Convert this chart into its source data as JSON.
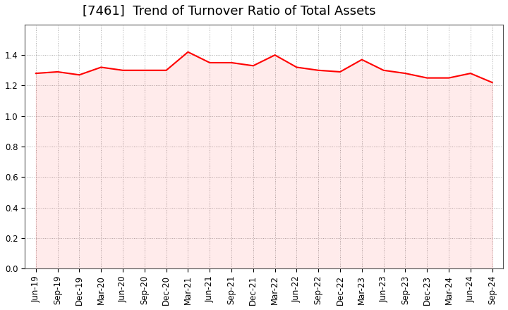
{
  "title": "[7461]  Trend of Turnover Ratio of Total Assets",
  "x_labels": [
    "Jun-19",
    "Sep-19",
    "Dec-19",
    "Mar-20",
    "Jun-20",
    "Sep-20",
    "Dec-20",
    "Mar-21",
    "Jun-21",
    "Sep-21",
    "Dec-21",
    "Mar-22",
    "Jun-22",
    "Sep-22",
    "Dec-22",
    "Mar-23",
    "Jun-23",
    "Sep-23",
    "Dec-23",
    "Mar-24",
    "Jun-24",
    "Sep-24"
  ],
  "values": [
    1.28,
    1.29,
    1.27,
    1.32,
    1.3,
    1.3,
    1.3,
    1.42,
    1.35,
    1.35,
    1.33,
    1.4,
    1.32,
    1.3,
    1.29,
    1.37,
    1.3,
    1.28,
    1.25,
    1.25,
    1.28,
    1.22
  ],
  "line_color": "#ff0000",
  "line_width": 1.5,
  "ylim": [
    0.0,
    1.6
  ],
  "yticks": [
    0.0,
    0.2,
    0.4,
    0.6,
    0.8,
    1.0,
    1.2,
    1.4
  ],
  "background_color": "#ffffff",
  "grid_color": "#aaaaaa",
  "title_fontsize": 13,
  "tick_fontsize": 8.5
}
